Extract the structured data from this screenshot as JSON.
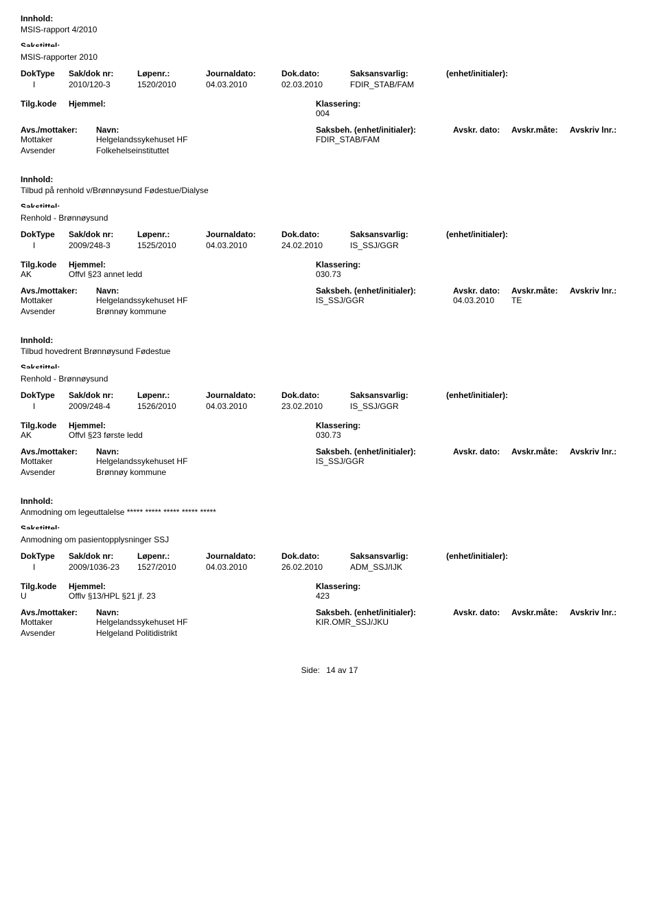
{
  "labels": {
    "innhold": "Innhold:",
    "sakstittel": "Sakstittel:",
    "doktype": "DokType",
    "sakdoknr": "Sak/dok nr:",
    "lopenr": "Løpenr.:",
    "journaldato": "Journaldato:",
    "dokdato": "Dok.dato:",
    "saksansvarlig": "Saksansvarlig:",
    "enhetinit": "(enhet/initialer):",
    "tilgkode": "Tilg.kode",
    "hjemmel": "Hjemmel:",
    "klassering": "Klassering:",
    "avsmottaker": "Avs./mottaker:",
    "navn": "Navn:",
    "saksbeh": "Saksbeh.",
    "saksbehenhet": "(enhet/initialer):",
    "avskrdato": "Avskr. dato:",
    "avskrmate": "Avskr.måte:",
    "avskrivlnr": "Avskriv lnr.:",
    "mottaker": "Mottaker",
    "avsender": "Avsender",
    "side": "Side:",
    "av": "av"
  },
  "footer": {
    "page": "14",
    "total": "17"
  },
  "records": [
    {
      "innhold": "MSIS-rapport 4/2010",
      "sakstittel": "MSIS-rapporter 2010",
      "doktype": "I",
      "sakdoknr": "2010/120-3",
      "lopenr": "1520/2010",
      "journaldato": "04.03.2010",
      "dokdato": "02.03.2010",
      "saksansvarlig": "FDIR_STAB/FAM",
      "tilgkode": "",
      "hjemmel": "",
      "klassering": "004",
      "parties": [
        {
          "role": "Mottaker",
          "navn": "Helgelandssykehuset HF",
          "saksbeh": "FDIR_STAB/FAM",
          "avskrdato": "",
          "avskrmate": ""
        },
        {
          "role": "Avsender",
          "navn": "Folkehelseinstituttet",
          "saksbeh": "",
          "avskrdato": "",
          "avskrmate": ""
        }
      ]
    },
    {
      "innhold": "Tilbud på renhold v/Brønnøysund Fødestue/Dialyse",
      "sakstittel": "Renhold - Brønnøysund",
      "doktype": "I",
      "sakdoknr": "2009/248-3",
      "lopenr": "1525/2010",
      "journaldato": "04.03.2010",
      "dokdato": "24.02.2010",
      "saksansvarlig": "IS_SSJ/GGR",
      "tilgkode": "AK",
      "hjemmel": "Offvl §23 annet ledd",
      "klassering": "030.73",
      "parties": [
        {
          "role": "Mottaker",
          "navn": "Helgelandssykehuset HF",
          "saksbeh": "IS_SSJ/GGR",
          "avskrdato": "04.03.2010",
          "avskrmate": "TE"
        },
        {
          "role": "Avsender",
          "navn": "Brønnøy kommune",
          "saksbeh": "",
          "avskrdato": "",
          "avskrmate": ""
        }
      ]
    },
    {
      "innhold": "Tilbud hovedrent Brønnøysund Fødestue",
      "sakstittel": "Renhold - Brønnøysund",
      "doktype": "I",
      "sakdoknr": "2009/248-4",
      "lopenr": "1526/2010",
      "journaldato": "04.03.2010",
      "dokdato": "23.02.2010",
      "saksansvarlig": "IS_SSJ/GGR",
      "tilgkode": "AK",
      "hjemmel": "Offvl §23 første ledd",
      "klassering": "030.73",
      "parties": [
        {
          "role": "Mottaker",
          "navn": "Helgelandssykehuset HF",
          "saksbeh": "IS_SSJ/GGR",
          "avskrdato": "",
          "avskrmate": ""
        },
        {
          "role": "Avsender",
          "navn": "Brønnøy kommune",
          "saksbeh": "",
          "avskrdato": "",
          "avskrmate": ""
        }
      ]
    },
    {
      "innhold": "Anmodning om legeuttalelse ***** ***** ***** ***** *****",
      "sakstittel": "Anmodning om pasientopplysninger SSJ",
      "doktype": "I",
      "sakdoknr": "2009/1036-23",
      "lopenr": "1527/2010",
      "journaldato": "04.03.2010",
      "dokdato": "26.02.2010",
      "saksansvarlig": "ADM_SSJ/IJK",
      "tilgkode": "U",
      "hjemmel": "Offlv §13/HPL §21 jf. 23",
      "klassering": "423",
      "parties": [
        {
          "role": "Mottaker",
          "navn": "Helgelandssykehuset HF",
          "saksbeh": "KIR.OMR_SSJ/JKU",
          "avskrdato": "",
          "avskrmate": ""
        },
        {
          "role": "Avsender",
          "navn": "Helgeland Politidistrikt",
          "saksbeh": "",
          "avskrdato": "",
          "avskrmate": ""
        }
      ]
    }
  ]
}
